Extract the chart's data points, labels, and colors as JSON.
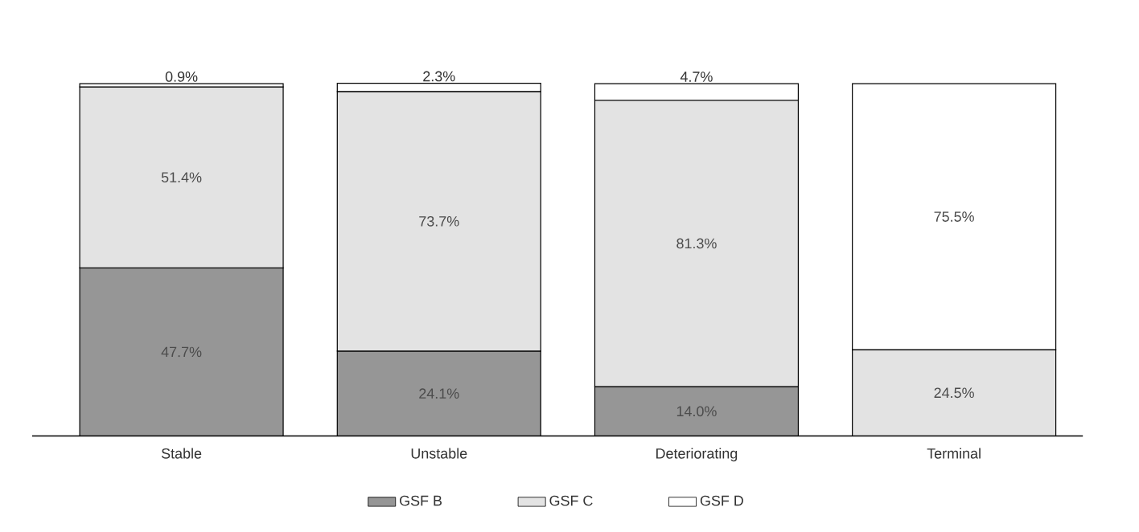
{
  "chart_data": {
    "type": "bar",
    "stacked": true,
    "legend": "bottom",
    "categories": [
      "Stable",
      "Unstable",
      "Deteriorating",
      "Terminal"
    ],
    "series": [
      {
        "name": "GSF B",
        "color": "#969696",
        "values": [
          47.7,
          24.1,
          14.0,
          null
        ],
        "value_labels": [
          "47.7%",
          "24.1%",
          "14.0%",
          null
        ]
      },
      {
        "name": "GSF C",
        "color": "#e3e3e3",
        "values": [
          51.4,
          73.7,
          81.3,
          24.5
        ],
        "value_labels": [
          "51.4%",
          "73.7%",
          "81.3%",
          "24.5%"
        ]
      },
      {
        "name": "GSF D",
        "color": "#ffffff",
        "values": [
          0.9,
          2.3,
          4.7,
          75.5
        ],
        "value_labels": [
          "0.9%",
          "2.3%",
          "4.7%",
          "75.5%"
        ]
      }
    ]
  }
}
